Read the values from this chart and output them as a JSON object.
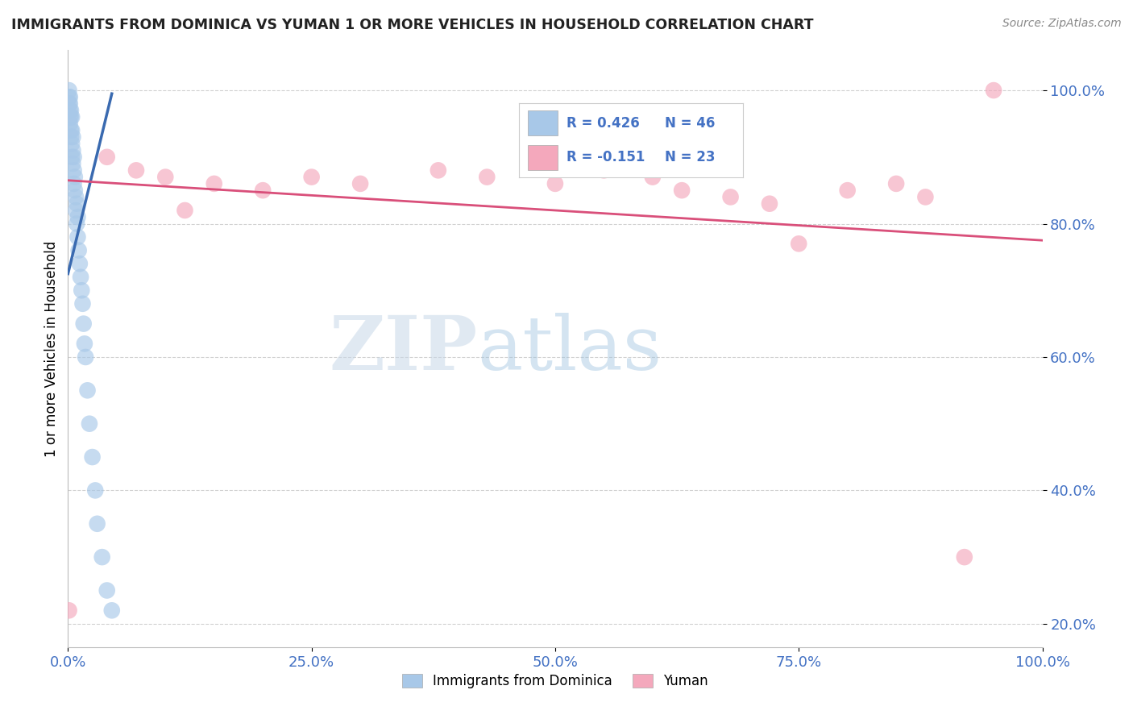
{
  "title": "IMMIGRANTS FROM DOMINICA VS YUMAN 1 OR MORE VEHICLES IN HOUSEHOLD CORRELATION CHART",
  "source": "Source: ZipAtlas.com",
  "ylabel": "1 or more Vehicles in Household",
  "blue_R": 0.426,
  "blue_N": 46,
  "pink_R": -0.151,
  "pink_N": 23,
  "blue_color": "#a8c8e8",
  "pink_color": "#f4a8bc",
  "blue_line_color": "#3a6ab0",
  "pink_line_color": "#d94f7a",
  "legend1_label": "Immigrants from Dominica",
  "legend2_label": "Yuman",
  "blue_scatter_x": [
    0.001,
    0.001,
    0.001,
    0.002,
    0.002,
    0.002,
    0.002,
    0.002,
    0.003,
    0.003,
    0.003,
    0.003,
    0.004,
    0.004,
    0.004,
    0.004,
    0.005,
    0.005,
    0.005,
    0.006,
    0.006,
    0.006,
    0.007,
    0.007,
    0.008,
    0.008,
    0.009,
    0.009,
    0.01,
    0.01,
    0.011,
    0.012,
    0.013,
    0.014,
    0.015,
    0.016,
    0.017,
    0.018,
    0.02,
    0.022,
    0.025,
    0.028,
    0.03,
    0.035,
    0.04,
    0.045
  ],
  "blue_scatter_y": [
    1.0,
    0.99,
    0.98,
    0.99,
    0.98,
    0.97,
    0.96,
    0.95,
    0.97,
    0.96,
    0.94,
    0.93,
    0.96,
    0.94,
    0.92,
    0.9,
    0.93,
    0.91,
    0.89,
    0.9,
    0.88,
    0.86,
    0.87,
    0.85,
    0.84,
    0.82,
    0.83,
    0.8,
    0.81,
    0.78,
    0.76,
    0.74,
    0.72,
    0.7,
    0.68,
    0.65,
    0.62,
    0.6,
    0.55,
    0.5,
    0.45,
    0.4,
    0.35,
    0.3,
    0.25,
    0.22
  ],
  "pink_scatter_x": [
    0.001,
    0.04,
    0.07,
    0.1,
    0.12,
    0.15,
    0.2,
    0.25,
    0.3,
    0.38,
    0.43,
    0.5,
    0.55,
    0.6,
    0.63,
    0.68,
    0.72,
    0.75,
    0.8,
    0.85,
    0.88,
    0.92,
    0.95
  ],
  "pink_scatter_y": [
    0.22,
    0.9,
    0.88,
    0.87,
    0.82,
    0.86,
    0.85,
    0.87,
    0.86,
    0.88,
    0.87,
    0.86,
    0.88,
    0.87,
    0.85,
    0.84,
    0.83,
    0.77,
    0.85,
    0.86,
    0.84,
    0.3,
    1.0
  ],
  "pink_line_x0": 0.0,
  "pink_line_y0": 0.865,
  "pink_line_x1": 1.0,
  "pink_line_y1": 0.775,
  "blue_line_x0": 0.0,
  "blue_line_y0": 0.725,
  "blue_line_x1": 0.045,
  "blue_line_y1": 0.995,
  "xlim": [
    0,
    1.0
  ],
  "ylim": [
    0.165,
    1.06
  ],
  "yticks": [
    0.2,
    0.4,
    0.6,
    0.8,
    1.0
  ],
  "xticks": [
    0.0,
    0.25,
    0.5,
    0.75,
    1.0
  ],
  "watermark_zip": "ZIP",
  "watermark_atlas": "atlas",
  "background_color": "#ffffff",
  "grid_color": "#cccccc",
  "tick_color": "#4472c4",
  "title_color": "#222222",
  "source_color": "#888888"
}
